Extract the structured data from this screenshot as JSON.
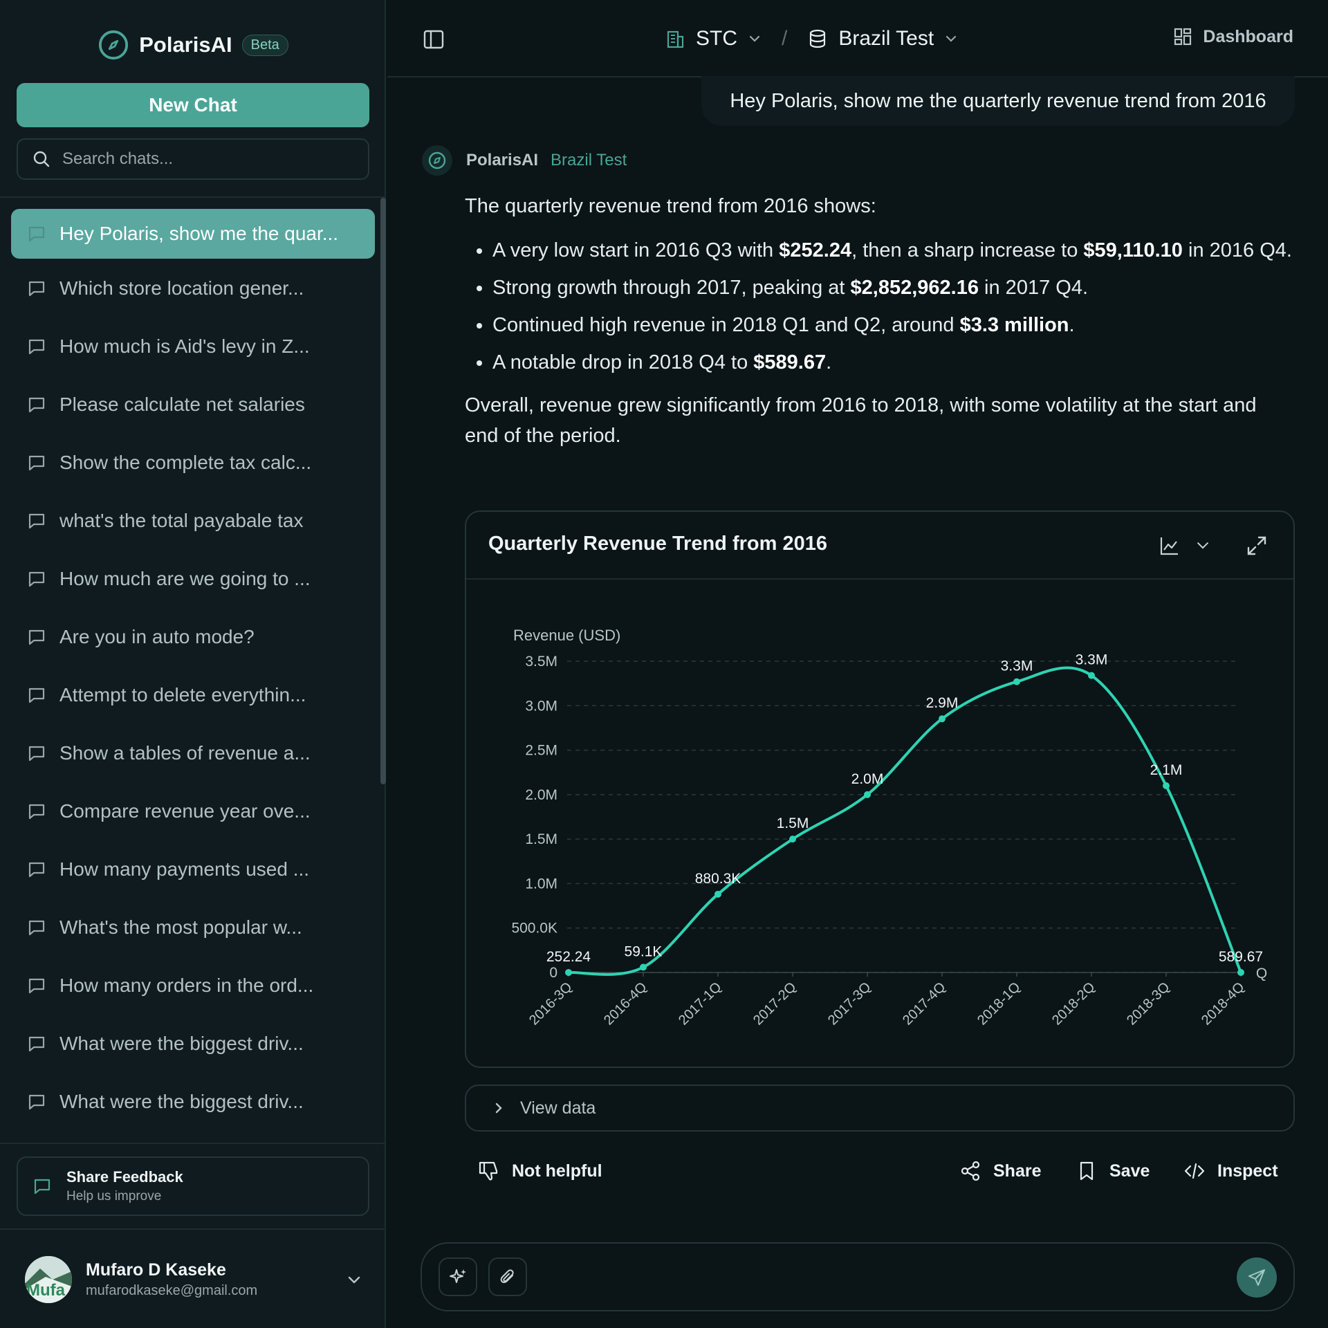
{
  "app": {
    "name": "PolarisAI",
    "badge": "Beta"
  },
  "sidebar": {
    "new_chat": "New Chat",
    "search_placeholder": "Search chats...",
    "items": [
      {
        "label": "Hey Polaris, show me the quar..."
      },
      {
        "label": "Which store location gener..."
      },
      {
        "label": "How much is Aid's levy in Z..."
      },
      {
        "label": "Please calculate net salaries"
      },
      {
        "label": "Show the complete tax calc..."
      },
      {
        "label": "what's the total payabale tax"
      },
      {
        "label": "How much are we going to ..."
      },
      {
        "label": "Are you in auto mode?"
      },
      {
        "label": "Attempt to delete everythin..."
      },
      {
        "label": "Show a tables of revenue a..."
      },
      {
        "label": "Compare revenue year ove..."
      },
      {
        "label": "How many payments used ..."
      },
      {
        "label": "What's the most popular w..."
      },
      {
        "label": "How many orders in the ord..."
      },
      {
        "label": "What were the biggest driv..."
      },
      {
        "label": "What were the biggest driv..."
      }
    ],
    "feedback": {
      "title": "Share Feedback",
      "subtitle": "Help us improve"
    },
    "user": {
      "name": "Mufaro D Kaseke",
      "email": "mufarodkaseke@gmail.com",
      "avatar_text": "Mufa"
    }
  },
  "topbar": {
    "org": "STC",
    "separator": "/",
    "dataset": "Brazil Test",
    "dashboard": "Dashboard"
  },
  "conversation": {
    "user_message": "Hey Polaris, show me the quarterly revenue trend from 2016",
    "assistant_name": "PolarisAI",
    "assistant_dataset": "Brazil Test",
    "intro": "The quarterly revenue trend from 2016 shows:",
    "bullets": [
      {
        "pre": "A very low start in 2016 Q3 with ",
        "b1": "$252.24",
        "mid": ", then a sharp increase to ",
        "b2": "$59,110.10",
        "post": " in 2016 Q4."
      },
      {
        "pre": "Strong growth through 2017, peaking at ",
        "b1": "$2,852,962.16",
        "post": " in 2017 Q4."
      },
      {
        "pre": "Continued high revenue in 2018 Q1 and Q2, around ",
        "b1": "$3.3 million",
        "post": "."
      },
      {
        "pre": "A notable drop in 2018 Q4 to ",
        "b1": "$589.67",
        "post": "."
      }
    ],
    "summary": "Overall, revenue grew significantly from 2016 to 2018, with some volatility at the start and end of the period."
  },
  "chart_card": {
    "title": "Quarterly Revenue Trend from 2016",
    "view_data": "View data"
  },
  "chart_data": {
    "type": "line",
    "title": "Quarterly Revenue Trend from 2016",
    "ylabel": "Revenue (USD)",
    "xlabel": "Q",
    "categories": [
      "2016-3Q",
      "2016-4Q",
      "2017-1Q",
      "2017-2Q",
      "2017-3Q",
      "2017-4Q",
      "2018-1Q",
      "2018-2Q",
      "2018-3Q",
      "2018-4Q"
    ],
    "values": [
      252.24,
      59110.1,
      880300,
      1500000,
      2000000,
      2852962.16,
      3270000,
      3340000,
      2100000,
      589.67
    ],
    "data_labels": [
      "252.24",
      "59.1K",
      "880.3K",
      "1.5M",
      "2.0M",
      "2.9M",
      "3.3M",
      "3.3M",
      "2.1M",
      "589.67"
    ],
    "yticks": [
      0,
      500000,
      1000000,
      1500000,
      2000000,
      2500000,
      3000000,
      3500000
    ],
    "ytick_labels": [
      "0",
      "500.0K",
      "1.0M",
      "1.5M",
      "2.0M",
      "2.5M",
      "3.0M",
      "3.5M"
    ],
    "ylim": [
      0,
      3500000
    ],
    "grid": true,
    "line_color": "#2ed3b2"
  },
  "actions": {
    "not_helpful": "Not helpful",
    "share": "Share",
    "save": "Save",
    "inspect": "Inspect"
  },
  "colors": {
    "accent": "#4aa596",
    "background": "#0b1417",
    "sidebar": "#0f1b1f"
  }
}
